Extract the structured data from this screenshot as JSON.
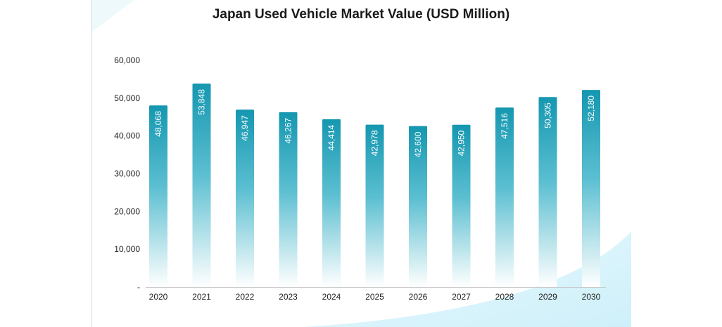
{
  "chart_data": {
    "type": "bar",
    "title": "Japan Used Vehicle Market Value (USD Million)",
    "categories": [
      "2020",
      "2021",
      "2022",
      "2023",
      "2024",
      "2025",
      "2026",
      "2027",
      "2028",
      "2029",
      "2030"
    ],
    "values": [
      48068,
      53848,
      46947,
      46267,
      44414,
      42978,
      42600,
      42950,
      47516,
      50305,
      52180
    ],
    "data_labels": [
      "48,068",
      "53,848",
      "46,947",
      "46,267",
      "44,414",
      "42,978",
      "42,600",
      "42,950",
      "47,516",
      "50,305",
      "52,180"
    ],
    "yticks": [
      0,
      10000,
      20000,
      30000,
      40000,
      50000,
      60000
    ],
    "ytick_labels": [
      "-",
      "10,000",
      "20,000",
      "30,000",
      "40,000",
      "50,000",
      "60,000"
    ],
    "ylim": [
      0,
      60000
    ],
    "xlabel": "",
    "ylabel": "",
    "grid": false,
    "legend": "none",
    "colors": {
      "bar_top": "#1597b0",
      "bar_bottom": "#ffffff",
      "axis": "#c8c8c8",
      "background_accent": "#d2f1fb"
    }
  }
}
